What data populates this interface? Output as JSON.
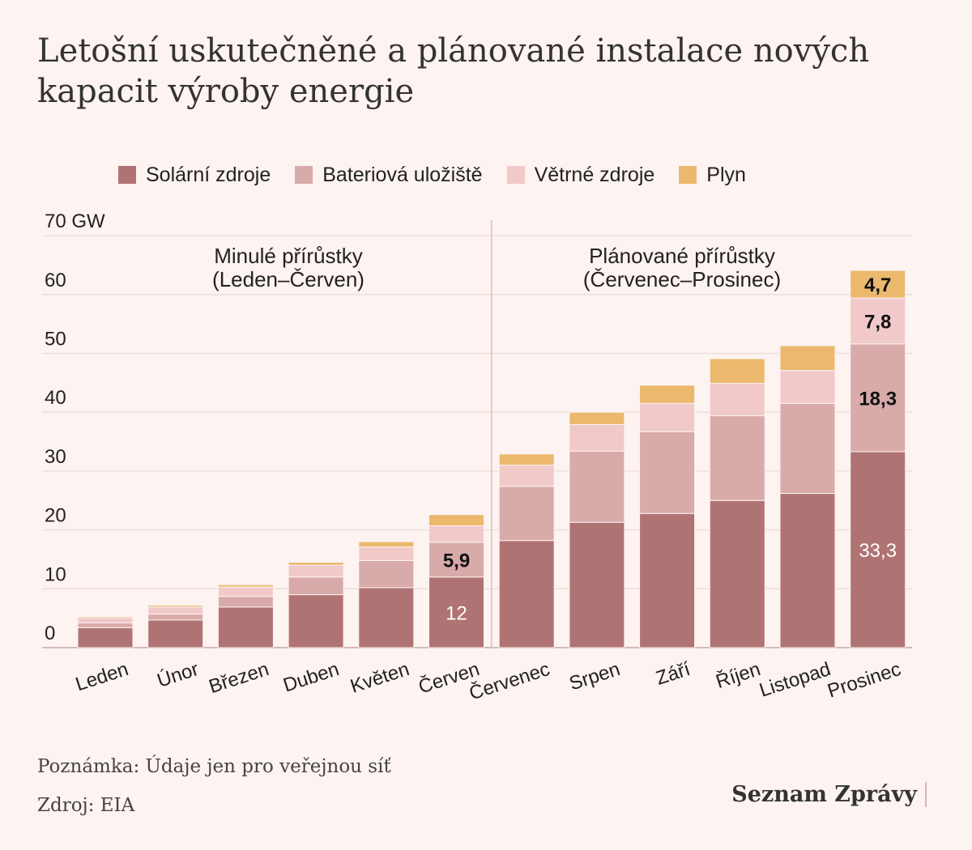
{
  "title": "Letošní uskutečněné a plánované instalace nových kapacit výroby energie",
  "legend": [
    {
      "label": "Solární zdroje",
      "color": "#b07373"
    },
    {
      "label": "Bateriová uložiště",
      "color": "#d9aaaa"
    },
    {
      "label": "Větrné zdroje",
      "color": "#f1c9c9"
    },
    {
      "label": "Plyn",
      "color": "#ebb96d"
    }
  ],
  "sections": {
    "past": {
      "line1": "Minulé přírůstky",
      "line2": "(Leden–Červen)"
    },
    "planned": {
      "line1": "Plánované přírůstky",
      "line2": "(Červenec–Prosinec)"
    }
  },
  "footnote": "Poznámka: Údaje jen pro veřejnou síť",
  "source": "Zdroj: EIA",
  "brand": "Seznam Zprávy",
  "chart_data": {
    "type": "bar",
    "stacked": true,
    "categories": [
      "Leden",
      "Únor",
      "Březen",
      "Duben",
      "Květen",
      "Červen",
      "Červenec",
      "Srpen",
      "Září",
      "Říjen",
      "Listopad",
      "Prosinec"
    ],
    "series": [
      {
        "name": "Solární zdroje",
        "color": "#b07373",
        "values": [
          3.4,
          4.7,
          6.9,
          9.0,
          10.2,
          12.0,
          18.2,
          21.3,
          22.8,
          25.0,
          26.2,
          33.3
        ]
      },
      {
        "name": "Bateriová uložiště",
        "color": "#d9aaaa",
        "values": [
          0.8,
          1.0,
          1.8,
          3.0,
          4.6,
          5.9,
          9.2,
          12.1,
          13.9,
          14.4,
          15.3,
          18.3
        ]
      },
      {
        "name": "Větrné zdroje",
        "color": "#f1c9c9",
        "values": [
          0.9,
          1.2,
          1.6,
          2.0,
          2.3,
          2.8,
          3.6,
          4.5,
          4.8,
          5.5,
          5.6,
          7.8
        ]
      },
      {
        "name": "Plyn",
        "color": "#ebb96d",
        "values": [
          0.2,
          0.3,
          0.4,
          0.5,
          0.9,
          1.9,
          1.9,
          2.1,
          3.1,
          4.2,
          4.2,
          4.7
        ]
      }
    ],
    "data_labels": [
      {
        "category": "Červen",
        "series": "Solární zdroje",
        "text": "12"
      },
      {
        "category": "Červen",
        "series": "Bateriová uložiště",
        "text": "5,9"
      },
      {
        "category": "Prosinec",
        "series": "Solární zdroje",
        "text": "33,3"
      },
      {
        "category": "Prosinec",
        "series": "Bateriová uložiště",
        "text": "18,3"
      },
      {
        "category": "Prosinec",
        "series": "Větrné zdroje",
        "text": "7,8"
      },
      {
        "category": "Prosinec",
        "series": "Plyn",
        "text": "4,7"
      }
    ],
    "ylim": [
      0,
      70
    ],
    "yticks": [
      0,
      10,
      20,
      30,
      40,
      50,
      60,
      70
    ],
    "ytick_labels": [
      "0",
      "10",
      "20",
      "30",
      "40",
      "50",
      "60",
      "70 GW"
    ],
    "grid": true,
    "legend_position": "top"
  }
}
